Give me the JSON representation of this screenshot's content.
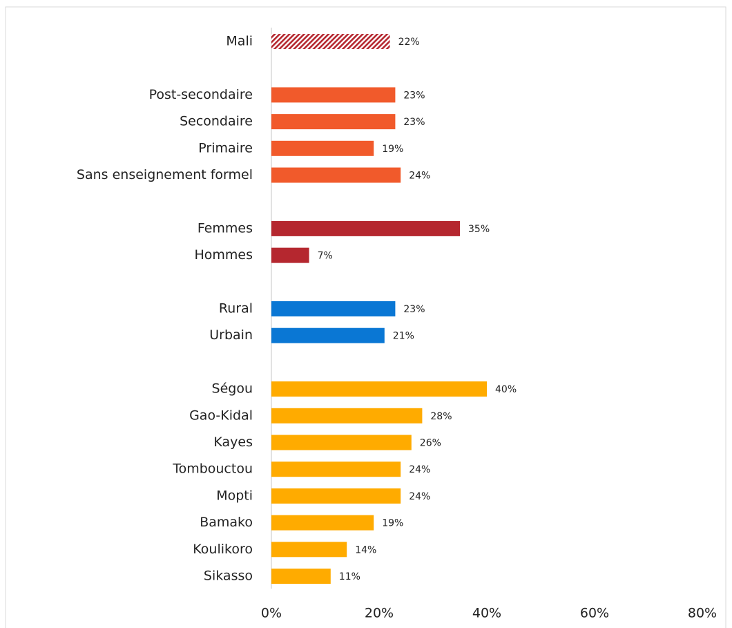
{
  "chart_data": {
    "type": "barh",
    "categories": [
      "Mali",
      null,
      "Post-secondaire",
      "Secondaire",
      "Primaire",
      "Sans enseignement formel",
      null,
      "Femmes",
      "Hommes",
      null,
      "Rural",
      "Urbain",
      null,
      "Ségou",
      "Gao-Kidal",
      "Kayes",
      "Tombouctou",
      "Mopti",
      "Bamako",
      "Koulikoro",
      "Sikasso"
    ],
    "values": [
      22,
      null,
      23,
      23,
      19,
      24,
      null,
      35,
      7,
      null,
      23,
      21,
      null,
      40,
      28,
      26,
      24,
      24,
      19,
      14,
      11
    ],
    "value_labels": [
      "22%",
      null,
      "23%",
      "23%",
      "19%",
      "24%",
      null,
      "35%",
      "7%",
      null,
      "23%",
      "21%",
      null,
      "40%",
      "28%",
      "26%",
      "24%",
      "24%",
      "19%",
      "14%",
      "11%"
    ],
    "colors": [
      "#b5272f",
      null,
      "#f15a2b",
      "#f15a2b",
      "#f15a2b",
      "#f15a2b",
      null,
      "#b5272f",
      "#b5272f",
      null,
      "#0a77d4",
      "#0a77d4",
      null,
      "#ffab00",
      "#ffab00",
      "#ffab00",
      "#ffab00",
      "#ffab00",
      "#ffab00",
      "#ffab00",
      "#ffab00"
    ],
    "hatched_categories": [
      "Mali"
    ],
    "xlim": [
      0,
      80
    ],
    "xticks": [
      {
        "value": 0,
        "label": "0%"
      },
      {
        "value": 20,
        "label": "20%"
      },
      {
        "value": 40,
        "label": "40%"
      },
      {
        "value": 60,
        "label": "60%"
      },
      {
        "value": 80,
        "label": "80%"
      }
    ],
    "grid": false
  }
}
